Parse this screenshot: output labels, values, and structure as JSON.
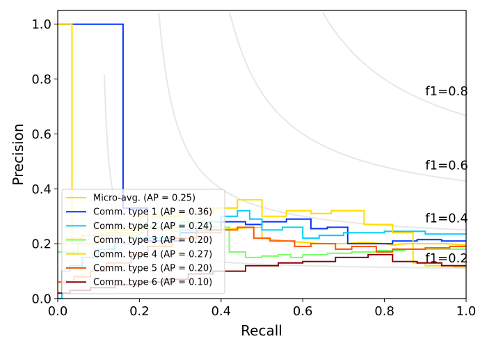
{
  "chart_data": {
    "type": "line",
    "title": "",
    "xlabel": "Recall",
    "ylabel": "Precision",
    "xlim": [
      0.0,
      1.0
    ],
    "ylim": [
      0.0,
      1.05
    ],
    "xticks": [
      "0.0",
      "0.2",
      "0.4",
      "0.6",
      "0.8",
      "1.0"
    ],
    "yticks": [
      "0.0",
      "0.2",
      "0.4",
      "0.6",
      "0.8",
      "1.0"
    ],
    "grid": false,
    "legend_position": "lower-left",
    "iso_f1": [
      {
        "f": 0.2,
        "label": "f1=0.2"
      },
      {
        "f": 0.4,
        "label": "f1=0.4"
      },
      {
        "f": 0.6,
        "label": "f1=0.6"
      },
      {
        "f": 0.8,
        "label": "f1=0.8"
      }
    ],
    "series": [
      {
        "name": "Micro-avg. (AP = 0.25)",
        "color": "#ffd700",
        "points": [
          [
            0.0,
            0.2
          ],
          [
            0.02,
            0.2
          ],
          [
            0.02,
            0.22
          ],
          [
            0.06,
            0.22
          ],
          [
            0.06,
            0.23
          ],
          [
            0.12,
            0.23
          ],
          [
            0.12,
            0.24
          ],
          [
            0.2,
            0.24
          ],
          [
            0.2,
            0.25
          ],
          [
            0.28,
            0.25
          ],
          [
            0.3,
            0.24
          ],
          [
            0.36,
            0.245
          ],
          [
            0.4,
            0.25
          ],
          [
            0.42,
            0.255
          ],
          [
            0.5,
            0.26
          ],
          [
            0.5,
            0.22
          ],
          [
            0.56,
            0.21
          ],
          [
            0.6,
            0.205
          ],
          [
            0.65,
            0.2
          ],
          [
            0.7,
            0.2
          ],
          [
            0.75,
            0.205
          ],
          [
            0.8,
            0.2
          ],
          [
            0.82,
            0.195
          ],
          [
            0.85,
            0.2
          ],
          [
            0.9,
            0.2
          ],
          [
            0.95,
            0.2
          ],
          [
            1.0,
            0.195
          ]
        ]
      },
      {
        "name": "Comm. type 1 (AP = 0.36)",
        "color": "#0033ff",
        "points": [
          [
            0.0,
            1.0
          ],
          [
            0.16,
            1.0
          ],
          [
            0.16,
            0.33
          ],
          [
            0.22,
            0.33
          ],
          [
            0.22,
            0.21
          ],
          [
            0.3,
            0.21
          ],
          [
            0.3,
            0.24
          ],
          [
            0.34,
            0.24
          ],
          [
            0.34,
            0.25
          ],
          [
            0.4,
            0.25
          ],
          [
            0.4,
            0.28
          ],
          [
            0.46,
            0.28
          ],
          [
            0.46,
            0.27
          ],
          [
            0.5,
            0.27
          ],
          [
            0.5,
            0.28
          ],
          [
            0.56,
            0.28
          ],
          [
            0.56,
            0.29
          ],
          [
            0.6,
            0.29
          ],
          [
            0.62,
            0.29
          ],
          [
            0.62,
            0.255
          ],
          [
            0.66,
            0.255
          ],
          [
            0.66,
            0.26
          ],
          [
            0.71,
            0.26
          ],
          [
            0.71,
            0.2
          ],
          [
            0.8,
            0.2
          ],
          [
            0.82,
            0.2
          ],
          [
            0.82,
            0.21
          ],
          [
            0.88,
            0.21
          ],
          [
            0.88,
            0.215
          ],
          [
            0.94,
            0.215
          ],
          [
            0.94,
            0.21
          ],
          [
            1.0,
            0.21
          ]
        ]
      },
      {
        "name": "Comm. type 2 (AP = 0.24)",
        "color": "#00ccff",
        "points": [
          [
            0.0,
            0.0
          ],
          [
            0.01,
            0.0
          ],
          [
            0.01,
            0.1
          ],
          [
            0.03,
            0.1
          ],
          [
            0.03,
            0.12
          ],
          [
            0.06,
            0.12
          ],
          [
            0.06,
            0.15
          ],
          [
            0.1,
            0.15
          ],
          [
            0.1,
            0.18
          ],
          [
            0.14,
            0.18
          ],
          [
            0.14,
            0.2
          ],
          [
            0.2,
            0.2
          ],
          [
            0.2,
            0.22
          ],
          [
            0.3,
            0.22
          ],
          [
            0.3,
            0.25
          ],
          [
            0.36,
            0.25
          ],
          [
            0.36,
            0.28
          ],
          [
            0.4,
            0.28
          ],
          [
            0.4,
            0.3
          ],
          [
            0.44,
            0.3
          ],
          [
            0.44,
            0.32
          ],
          [
            0.47,
            0.32
          ],
          [
            0.47,
            0.29
          ],
          [
            0.5,
            0.29
          ],
          [
            0.5,
            0.25
          ],
          [
            0.55,
            0.25
          ],
          [
            0.55,
            0.26
          ],
          [
            0.6,
            0.26
          ],
          [
            0.6,
            0.22
          ],
          [
            0.64,
            0.22
          ],
          [
            0.64,
            0.23
          ],
          [
            0.7,
            0.23
          ],
          [
            0.7,
            0.24
          ],
          [
            0.8,
            0.24
          ],
          [
            0.8,
            0.245
          ],
          [
            0.9,
            0.245
          ],
          [
            0.9,
            0.235
          ],
          [
            1.0,
            0.235
          ]
        ]
      },
      {
        "name": "Comm. type 3 (AP = 0.20)",
        "color": "#77ff66",
        "points": [
          [
            0.0,
            0.17
          ],
          [
            0.05,
            0.17
          ],
          [
            0.05,
            0.2
          ],
          [
            0.1,
            0.2
          ],
          [
            0.1,
            0.23
          ],
          [
            0.2,
            0.23
          ],
          [
            0.2,
            0.26
          ],
          [
            0.3,
            0.26
          ],
          [
            0.3,
            0.28
          ],
          [
            0.36,
            0.28
          ],
          [
            0.36,
            0.26
          ],
          [
            0.42,
            0.26
          ],
          [
            0.42,
            0.17
          ],
          [
            0.46,
            0.17
          ],
          [
            0.46,
            0.15
          ],
          [
            0.5,
            0.15
          ],
          [
            0.5,
            0.155
          ],
          [
            0.54,
            0.155
          ],
          [
            0.54,
            0.16
          ],
          [
            0.57,
            0.16
          ],
          [
            0.57,
            0.15
          ],
          [
            0.6,
            0.15
          ],
          [
            0.6,
            0.16
          ],
          [
            0.66,
            0.16
          ],
          [
            0.66,
            0.165
          ],
          [
            0.72,
            0.165
          ],
          [
            0.72,
            0.17
          ],
          [
            0.78,
            0.17
          ],
          [
            0.78,
            0.175
          ],
          [
            0.85,
            0.175
          ],
          [
            0.85,
            0.18
          ],
          [
            1.0,
            0.18
          ]
        ]
      },
      {
        "name": "Comm. type 4 (AP = 0.27)",
        "color": "#ffdd00",
        "points": [
          [
            0.0,
            1.0
          ],
          [
            0.035,
            1.0
          ],
          [
            0.035,
            0.2
          ],
          [
            0.1,
            0.2
          ],
          [
            0.1,
            0.25
          ],
          [
            0.2,
            0.25
          ],
          [
            0.2,
            0.3
          ],
          [
            0.3,
            0.3
          ],
          [
            0.3,
            0.31
          ],
          [
            0.38,
            0.31
          ],
          [
            0.38,
            0.33
          ],
          [
            0.44,
            0.33
          ],
          [
            0.44,
            0.36
          ],
          [
            0.5,
            0.36
          ],
          [
            0.5,
            0.3
          ],
          [
            0.56,
            0.3
          ],
          [
            0.56,
            0.32
          ],
          [
            0.62,
            0.32
          ],
          [
            0.62,
            0.31
          ],
          [
            0.67,
            0.31
          ],
          [
            0.67,
            0.32
          ],
          [
            0.75,
            0.32
          ],
          [
            0.75,
            0.27
          ],
          [
            0.82,
            0.27
          ],
          [
            0.82,
            0.24
          ],
          [
            0.87,
            0.24
          ],
          [
            0.87,
            0.13
          ],
          [
            0.9,
            0.13
          ],
          [
            0.9,
            0.12
          ],
          [
            0.97,
            0.12
          ],
          [
            0.97,
            0.115
          ],
          [
            1.0,
            0.115
          ]
        ]
      },
      {
        "name": "Comm. type 5 (AP = 0.20)",
        "color": "#ff5500",
        "points": [
          [
            0.0,
            0.06
          ],
          [
            0.04,
            0.06
          ],
          [
            0.04,
            0.08
          ],
          [
            0.08,
            0.08
          ],
          [
            0.08,
            0.1
          ],
          [
            0.12,
            0.1
          ],
          [
            0.12,
            0.13
          ],
          [
            0.18,
            0.13
          ],
          [
            0.18,
            0.16
          ],
          [
            0.22,
            0.16
          ],
          [
            0.22,
            0.19
          ],
          [
            0.28,
            0.19
          ],
          [
            0.28,
            0.22
          ],
          [
            0.34,
            0.22
          ],
          [
            0.34,
            0.24
          ],
          [
            0.4,
            0.24
          ],
          [
            0.4,
            0.25
          ],
          [
            0.44,
            0.25
          ],
          [
            0.44,
            0.26
          ],
          [
            0.48,
            0.26
          ],
          [
            0.48,
            0.22
          ],
          [
            0.52,
            0.22
          ],
          [
            0.52,
            0.21
          ],
          [
            0.58,
            0.21
          ],
          [
            0.58,
            0.19
          ],
          [
            0.62,
            0.19
          ],
          [
            0.62,
            0.2
          ],
          [
            0.68,
            0.2
          ],
          [
            0.68,
            0.18
          ],
          [
            0.72,
            0.18
          ],
          [
            0.72,
            0.19
          ],
          [
            0.78,
            0.19
          ],
          [
            0.78,
            0.17
          ],
          [
            0.82,
            0.17
          ],
          [
            0.82,
            0.18
          ],
          [
            0.9,
            0.18
          ],
          [
            0.9,
            0.185
          ],
          [
            0.96,
            0.185
          ],
          [
            0.96,
            0.19
          ],
          [
            1.0,
            0.19
          ]
        ]
      },
      {
        "name": "Comm. type 6 (AP = 0.10)",
        "color": "#880000",
        "points": [
          [
            0.0,
            0.02
          ],
          [
            0.03,
            0.02
          ],
          [
            0.03,
            0.03
          ],
          [
            0.08,
            0.03
          ],
          [
            0.08,
            0.04
          ],
          [
            0.14,
            0.04
          ],
          [
            0.14,
            0.05
          ],
          [
            0.2,
            0.05
          ],
          [
            0.2,
            0.06
          ],
          [
            0.26,
            0.06
          ],
          [
            0.26,
            0.07
          ],
          [
            0.32,
            0.07
          ],
          [
            0.32,
            0.09
          ],
          [
            0.38,
            0.09
          ],
          [
            0.38,
            0.1
          ],
          [
            0.46,
            0.1
          ],
          [
            0.46,
            0.12
          ],
          [
            0.54,
            0.12
          ],
          [
            0.54,
            0.13
          ],
          [
            0.6,
            0.13
          ],
          [
            0.6,
            0.135
          ],
          [
            0.68,
            0.135
          ],
          [
            0.68,
            0.15
          ],
          [
            0.76,
            0.15
          ],
          [
            0.76,
            0.16
          ],
          [
            0.82,
            0.16
          ],
          [
            0.82,
            0.135
          ],
          [
            0.88,
            0.135
          ],
          [
            0.88,
            0.13
          ],
          [
            0.94,
            0.13
          ],
          [
            0.94,
            0.12
          ],
          [
            1.0,
            0.12
          ]
        ]
      }
    ]
  }
}
